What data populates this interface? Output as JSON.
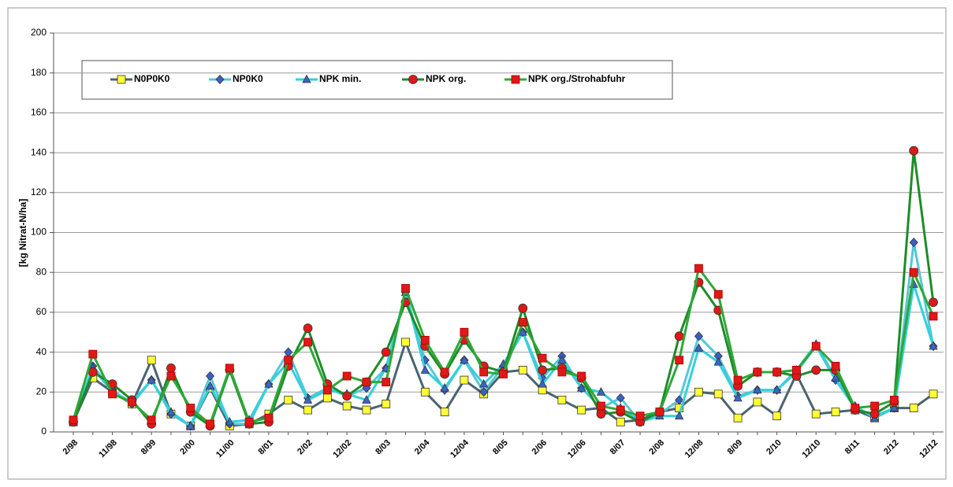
{
  "chart_data": {
    "type": "line",
    "y_label": "[kg Nitrat-N/ha]",
    "categories": [
      "2/98",
      null,
      "11/98",
      null,
      "8/99",
      null,
      "2/00",
      null,
      "11/00",
      null,
      "8/01",
      null,
      "2/02",
      null,
      "12/02",
      null,
      "8/03",
      null,
      "2/04",
      null,
      "12/04",
      null,
      "8/05",
      null,
      "2/06",
      null,
      "12/06",
      null,
      "8/07",
      null,
      "2/08",
      null,
      "12/08",
      null,
      "8/09",
      null,
      "2/10",
      null,
      "12/10",
      null,
      "8/11",
      null,
      "2/12",
      null,
      "12/12"
    ],
    "ylim": [
      0,
      200
    ],
    "yticks": [
      0,
      20,
      40,
      60,
      80,
      100,
      120,
      140,
      160,
      180,
      200
    ],
    "grid": true,
    "series": [
      {
        "name": "N0P0K0",
        "color": "#4a6470",
        "marker": "square",
        "marker_color": "#ffff33",
        "values": [
          5,
          27,
          20,
          14,
          36,
          9,
          3,
          22,
          3,
          4,
          9,
          16,
          11,
          17,
          13,
          11,
          14,
          45,
          20,
          10,
          26,
          19,
          30,
          31,
          21,
          16,
          11,
          12,
          5,
          6,
          10,
          12,
          20,
          19,
          7,
          15,
          8,
          29,
          9,
          10,
          11,
          7,
          12,
          12,
          19
        ]
      },
      {
        "name": "NP0K0",
        "color": "#55c8d8",
        "marker": "diamond",
        "marker_color": "#3b5fc8",
        "values": [
          5,
          33,
          21,
          14,
          26,
          9,
          3,
          28,
          4,
          4,
          24,
          40,
          17,
          22,
          18,
          22,
          32,
          70,
          36,
          21,
          36,
          20,
          33,
          50,
          27,
          38,
          22,
          12,
          17,
          5,
          9,
          16,
          48,
          38,
          18,
          21,
          21,
          30,
          43,
          26,
          12,
          8,
          12,
          95,
          43
        ]
      },
      {
        "name": "NPK min.",
        "color": "#33d0dc",
        "marker": "triangle",
        "marker_color": "#3a66c4",
        "values": [
          5,
          32,
          20,
          15,
          26,
          10,
          3,
          23,
          5,
          6,
          24,
          35,
          16,
          21,
          19,
          16,
          32,
          70,
          31,
          22,
          36,
          24,
          34,
          50,
          24,
          36,
          22,
          20,
          12,
          5,
          8,
          8,
          42,
          35,
          17,
          21,
          21,
          31,
          44,
          27,
          13,
          7,
          12,
          74,
          43
        ]
      },
      {
        "name": "NPK org.",
        "color": "#1e8c2a",
        "marker": "circle",
        "marker_color": "#e01818",
        "values": [
          5,
          30,
          24,
          16,
          4,
          32,
          10,
          3,
          31,
          4,
          5,
          33,
          52,
          24,
          18,
          25,
          40,
          65,
          43,
          29,
          46,
          33,
          30,
          62,
          31,
          32,
          27,
          9,
          10,
          5,
          10,
          48,
          75,
          61,
          23,
          30,
          30,
          28,
          31,
          31,
          11,
          9,
          15,
          141,
          65
        ]
      },
      {
        "name": "NPK org./Strohabfuhr",
        "color": "#2ea838",
        "marker": "square",
        "marker_color": "#e01818",
        "values": [
          6,
          39,
          19,
          15,
          6,
          28,
          12,
          4,
          32,
          5,
          7,
          36,
          45,
          21,
          28,
          25,
          25,
          72,
          46,
          30,
          50,
          30,
          29,
          55,
          37,
          30,
          28,
          13,
          11,
          8,
          10,
          36,
          82,
          69,
          26,
          30,
          30,
          31,
          43,
          33,
          12,
          13,
          16,
          80,
          58
        ]
      }
    ]
  }
}
